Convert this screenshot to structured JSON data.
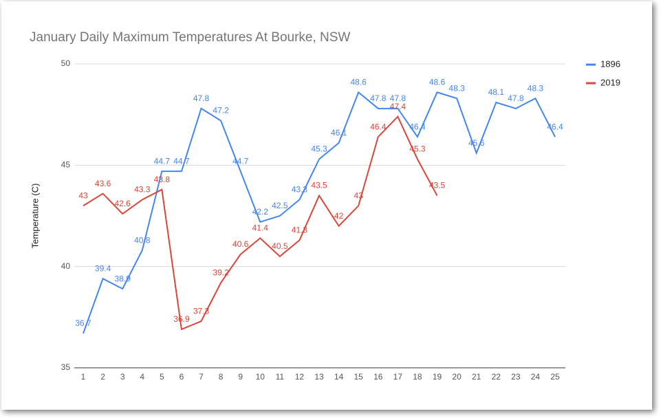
{
  "chart_data": {
    "type": "line",
    "title": "January Daily Maximum Temperatures At Bourke, NSW",
    "y_label": "Temperature (C)",
    "categories": [
      1,
      2,
      3,
      4,
      5,
      6,
      7,
      8,
      9,
      10,
      11,
      12,
      13,
      14,
      15,
      16,
      17,
      18,
      19,
      20,
      21,
      22,
      23,
      24,
      25
    ],
    "series": [
      {
        "name": "1896",
        "color": "#4285f4",
        "values": [
          36.7,
          39.4,
          38.9,
          40.8,
          44.7,
          44.7,
          47.8,
          47.2,
          44.7,
          42.2,
          42.5,
          43.3,
          45.3,
          46.1,
          48.6,
          47.8,
          47.8,
          46.4,
          48.6,
          48.3,
          45.6,
          48.1,
          47.8,
          48.3,
          46.4
        ]
      },
      {
        "name": "2019",
        "color": "#db4437",
        "values": [
          43,
          43.6,
          42.6,
          43.3,
          43.8,
          36.9,
          37.3,
          39.2,
          40.6,
          41.4,
          40.5,
          41.3,
          43.5,
          42,
          43,
          46.4,
          47.4,
          45.3,
          43.5,
          null,
          null,
          null,
          null,
          null,
          null
        ]
      }
    ],
    "ylim": [
      35,
      50
    ],
    "yticks": [
      35,
      40,
      45,
      50
    ],
    "grid": true,
    "legend": "right"
  }
}
